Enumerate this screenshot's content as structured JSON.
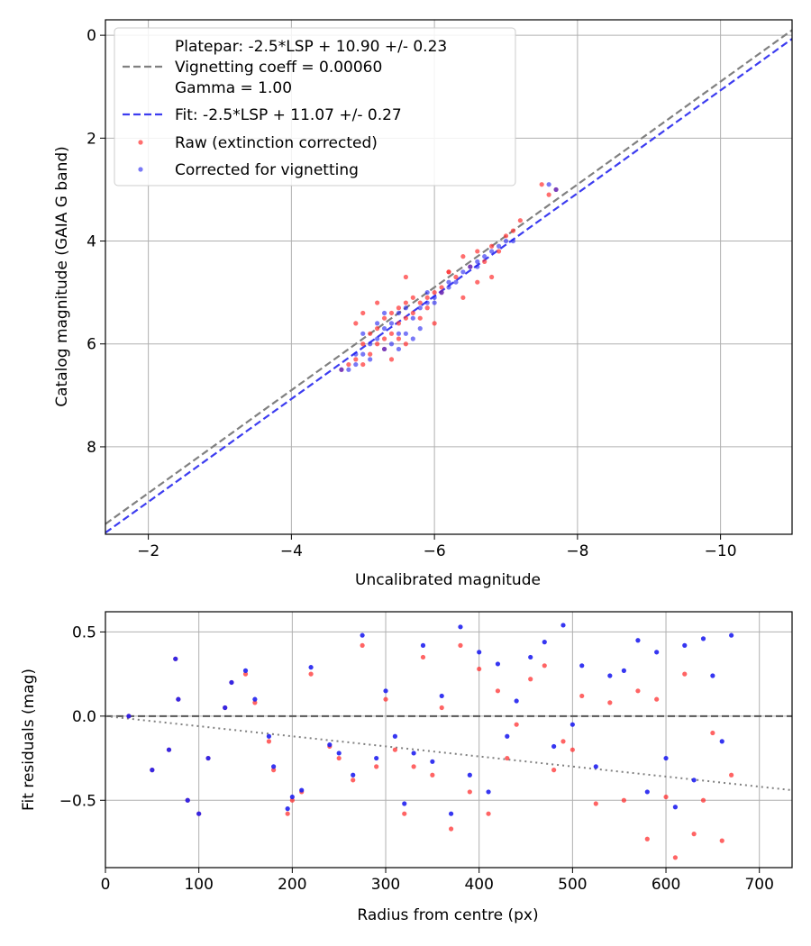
{
  "chart_data": [
    {
      "type": "scatter",
      "panel": "top",
      "xlabel": "Uncalibrated magnitude",
      "ylabel": "Catalog magnitude (GAIA G band)",
      "xlim": [
        -1.4,
        -11.0
      ],
      "ylim": [
        9.7,
        -0.3
      ],
      "xticks": [
        -2,
        -4,
        -6,
        -8,
        -10
      ],
      "xtick_labels": [
        "−2",
        "−4",
        "−6",
        "−8",
        "−10"
      ],
      "yticks": [
        0,
        2,
        4,
        6,
        8
      ],
      "ytick_labels": [
        "0",
        "2",
        "4",
        "6",
        "8"
      ],
      "grid": true,
      "legend_position": "top-left",
      "lines": [
        {
          "name": "platepar",
          "label_lines": [
            "Platepar: -2.5*LSP + 10.90 +/- 0.23",
            "Vignetting coeff = 0.00060",
            "Gamma = 1.00"
          ],
          "color": "#808080",
          "style": "dashed",
          "intercept": 10.9
        },
        {
          "name": "fit",
          "label_lines": [
            "Fit: -2.5*LSP + 11.07 +/- 0.27"
          ],
          "color": "#3c3cf0",
          "style": "dashed",
          "intercept": 11.07
        }
      ],
      "series": [
        {
          "name": "Raw (extinction corrected)",
          "color": "#ff3030",
          "x": [
            -4.7,
            -4.8,
            -4.9,
            -5.0,
            -5.0,
            -5.1,
            -5.1,
            -5.2,
            -5.2,
            -5.3,
            -5.3,
            -5.4,
            -5.4,
            -5.5,
            -5.5,
            -5.6,
            -5.6,
            -5.7,
            -5.7,
            -5.8,
            -5.9,
            -6.0,
            -6.1,
            -6.2,
            -6.3,
            -6.4,
            -6.5,
            -6.6,
            -6.7,
            -6.8,
            -6.9,
            -7.0,
            -7.1,
            -5.2,
            -5.4,
            -5.6,
            -5.8,
            -6.0,
            -5.0,
            -5.3,
            -5.6,
            -5.9,
            -6.1,
            -6.4,
            -6.8,
            -7.5,
            -7.6,
            -7.7,
            -4.9,
            -5.5,
            -6.2,
            -6.6,
            -7.2
          ],
          "y": [
            6.5,
            6.4,
            6.3,
            6.0,
            6.4,
            5.8,
            6.2,
            5.7,
            6.0,
            5.5,
            5.9,
            5.4,
            5.8,
            5.3,
            5.6,
            5.2,
            5.5,
            5.1,
            5.4,
            5.2,
            5.1,
            5.0,
            4.9,
            4.6,
            4.7,
            4.3,
            4.5,
            4.2,
            4.4,
            4.1,
            4.2,
            3.9,
            3.8,
            5.2,
            6.3,
            4.7,
            5.5,
            5.6,
            5.4,
            6.1,
            6.0,
            5.3,
            5.0,
            5.1,
            4.7,
            2.9,
            3.1,
            3.0,
            5.6,
            5.9,
            4.6,
            4.8,
            3.6
          ]
        },
        {
          "name": "Corrected for vignetting",
          "color": "#2020f0",
          "x": [
            -4.7,
            -4.8,
            -4.9,
            -5.0,
            -5.1,
            -5.1,
            -5.2,
            -5.3,
            -5.3,
            -5.4,
            -5.5,
            -5.5,
            -5.6,
            -5.7,
            -5.8,
            -5.9,
            -6.0,
            -6.1,
            -6.2,
            -6.3,
            -6.4,
            -6.5,
            -6.6,
            -6.7,
            -6.8,
            -6.9,
            -7.0,
            -5.2,
            -5.4,
            -5.6,
            -5.8,
            -6.0,
            -5.0,
            -5.3,
            -5.7,
            -6.2,
            -6.6,
            -7.1,
            -7.6,
            -7.7,
            -4.9,
            -5.5,
            -5.9
          ],
          "y": [
            6.5,
            6.5,
            6.4,
            6.2,
            6.0,
            6.3,
            5.9,
            5.7,
            6.1,
            5.6,
            5.4,
            5.8,
            5.3,
            5.5,
            5.3,
            5.2,
            5.1,
            5.0,
            4.8,
            4.8,
            4.6,
            4.5,
            4.4,
            4.3,
            4.2,
            4.1,
            4.0,
            5.6,
            6.0,
            5.8,
            5.7,
            5.2,
            5.8,
            5.4,
            5.9,
            4.9,
            4.5,
            4.0,
            2.9,
            3.0,
            6.2,
            6.1,
            5.0
          ]
        }
      ]
    },
    {
      "type": "scatter",
      "panel": "bottom",
      "xlabel": "Radius from centre (px)",
      "ylabel": "Fit residuals (mag)",
      "xlim": [
        0,
        735
      ],
      "ylim": [
        -0.9,
        0.62
      ],
      "xticks": [
        0,
        100,
        200,
        300,
        400,
        500,
        600,
        700
      ],
      "xtick_labels": [
        "0",
        "100",
        "200",
        "300",
        "400",
        "500",
        "600",
        "700"
      ],
      "yticks": [
        -0.5,
        0.0,
        0.5
      ],
      "ytick_labels": [
        "−0.5",
        "0.0",
        "0.5"
      ],
      "grid": true,
      "reference_lines": [
        {
          "name": "zero",
          "style": "dashed",
          "color": "#555555",
          "x": [
            0,
            735
          ],
          "y": [
            0,
            0
          ]
        },
        {
          "name": "vignetting",
          "style": "dotted",
          "color": "#808080",
          "x": [
            0,
            735
          ],
          "y": [
            0,
            -0.44
          ]
        }
      ],
      "series": [
        {
          "name": "Raw",
          "color": "#ff3030",
          "x": [
            25,
            50,
            68,
            75,
            78,
            88,
            100,
            110,
            128,
            135,
            150,
            160,
            175,
            180,
            195,
            200,
            210,
            220,
            240,
            250,
            265,
            275,
            290,
            300,
            310,
            320,
            330,
            340,
            350,
            360,
            370,
            380,
            390,
            400,
            410,
            420,
            430,
            440,
            455,
            470,
            480,
            490,
            500,
            510,
            525,
            540,
            555,
            570,
            580,
            590,
            600,
            610,
            620,
            630,
            640,
            650,
            660,
            670
          ],
          "y": [
            0.0,
            -0.32,
            -0.2,
            0.34,
            0.1,
            -0.5,
            -0.58,
            -0.25,
            0.05,
            0.2,
            0.25,
            0.08,
            -0.15,
            -0.32,
            -0.58,
            -0.5,
            -0.45,
            0.25,
            -0.18,
            -0.25,
            -0.38,
            0.42,
            -0.3,
            0.1,
            -0.2,
            -0.58,
            -0.3,
            0.35,
            -0.35,
            0.05,
            -0.67,
            0.42,
            -0.45,
            0.28,
            -0.58,
            0.15,
            -0.25,
            -0.05,
            0.22,
            0.3,
            -0.32,
            -0.15,
            -0.2,
            0.12,
            -0.52,
            0.08,
            -0.5,
            0.15,
            -0.73,
            0.1,
            -0.48,
            -0.84,
            0.25,
            -0.7,
            -0.5,
            -0.1,
            -0.74,
            -0.35
          ]
        },
        {
          "name": "Corrected",
          "color": "#2020f0",
          "x": [
            25,
            50,
            68,
            75,
            78,
            88,
            100,
            110,
            128,
            135,
            150,
            160,
            175,
            180,
            195,
            200,
            210,
            220,
            240,
            250,
            265,
            275,
            290,
            300,
            310,
            320,
            330,
            340,
            350,
            360,
            370,
            380,
            390,
            400,
            410,
            420,
            430,
            440,
            455,
            470,
            480,
            490,
            500,
            510,
            525,
            540,
            555,
            570,
            580,
            590,
            600,
            610,
            620,
            630,
            640,
            650,
            660,
            670
          ],
          "y": [
            0.0,
            -0.32,
            -0.2,
            0.34,
            0.1,
            -0.5,
            -0.58,
            -0.25,
            0.05,
            0.2,
            0.27,
            0.1,
            -0.12,
            -0.3,
            -0.55,
            -0.48,
            -0.44,
            0.29,
            -0.17,
            -0.22,
            -0.35,
            0.48,
            -0.25,
            0.15,
            -0.12,
            -0.52,
            -0.22,
            0.42,
            -0.27,
            0.12,
            -0.58,
            0.53,
            -0.35,
            0.38,
            -0.45,
            0.31,
            -0.12,
            0.09,
            0.35,
            0.44,
            -0.18,
            0.54,
            -0.05,
            0.3,
            -0.3,
            0.24,
            0.27,
            0.45,
            -0.45,
            0.38,
            -0.25,
            -0.54,
            0.42,
            -0.38,
            0.46,
            0.24,
            -0.15,
            0.48
          ]
        }
      ]
    }
  ]
}
